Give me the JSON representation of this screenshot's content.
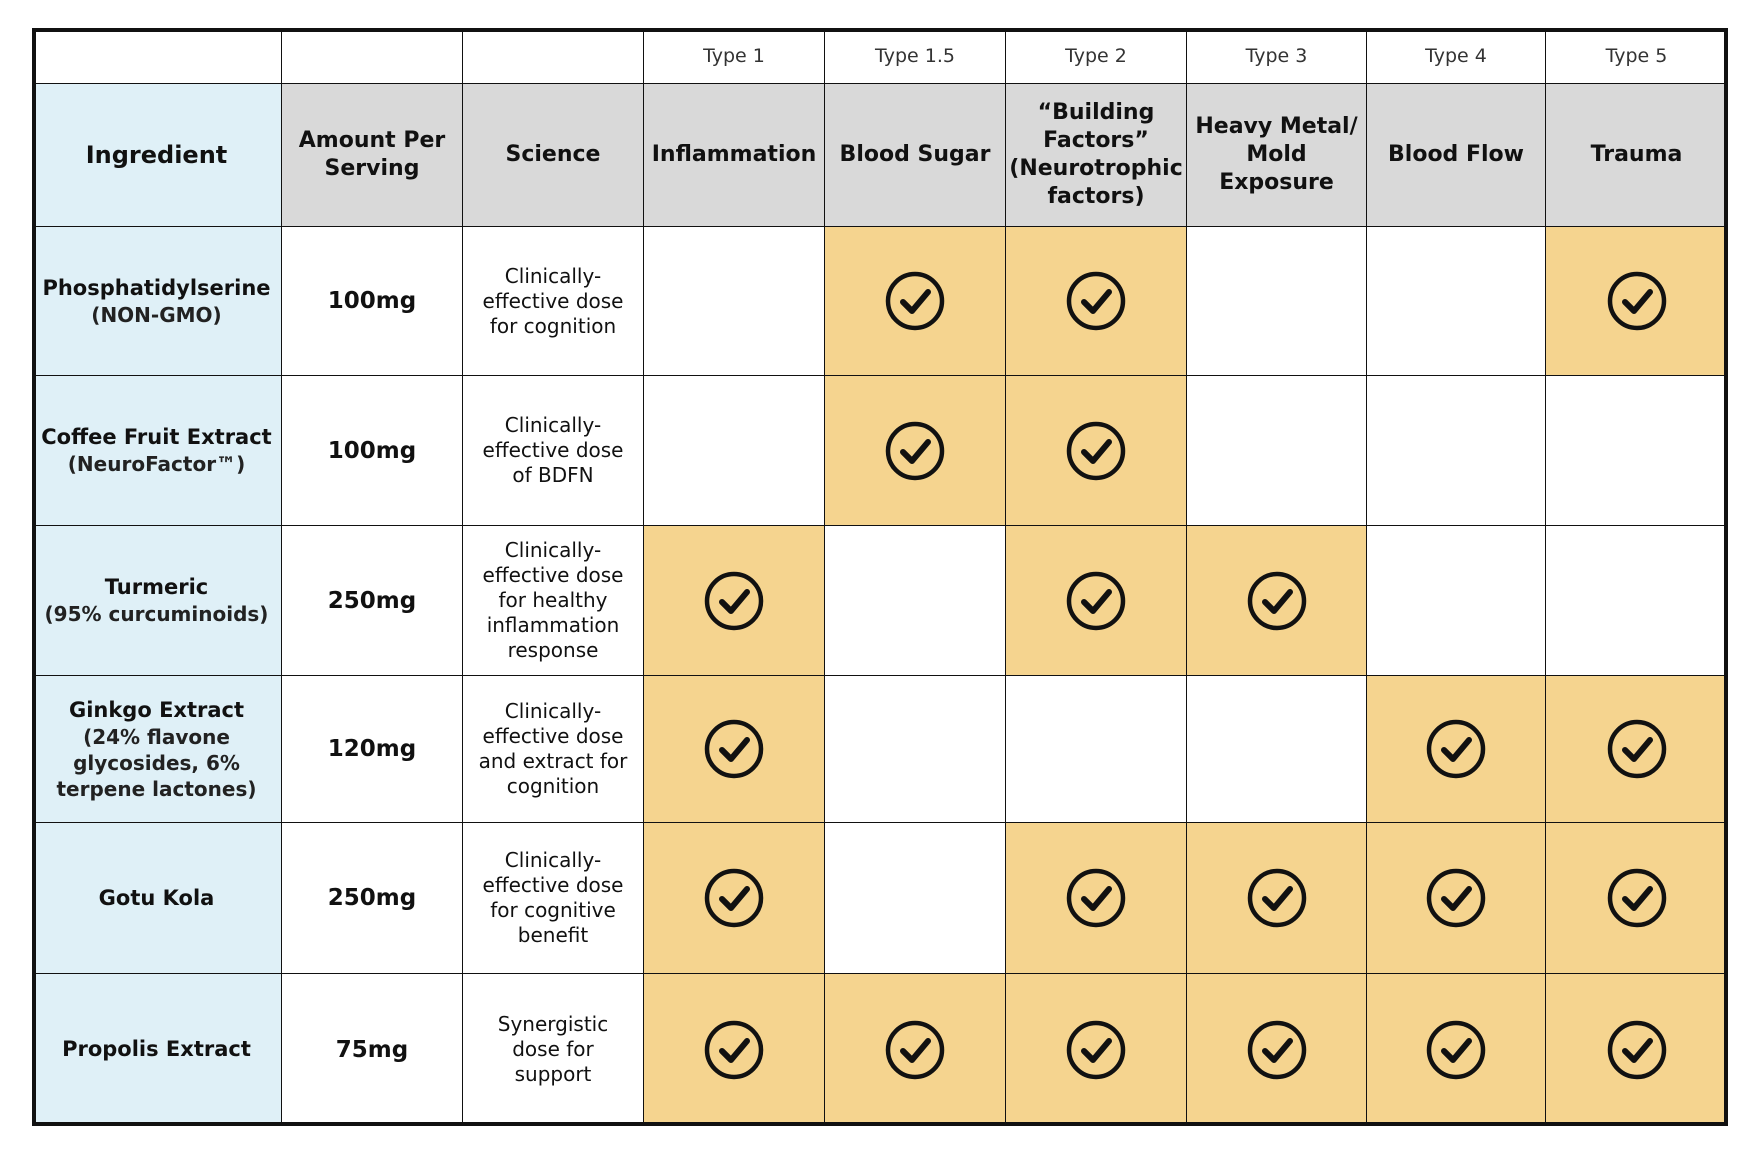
{
  "table": {
    "type_labels": [
      "Type 1",
      "Type 1.5",
      "Type 2",
      "Type 3",
      "Type 4",
      "Type 5"
    ],
    "header": [
      "Ingredient",
      "Amount Per Serving",
      "Science",
      "Inflammation",
      "Blood Sugar",
      "“Building Factors” (Neurotrophic factors)",
      "Heavy Metal/ Mold Exposure",
      "Blood Flow",
      "Trauma"
    ],
    "rows": [
      {
        "name": "Phosphatidylserine",
        "detail": "(NON-GMO)",
        "amount": "100mg",
        "science": "Clinically-effective dose for cognition",
        "checks": [
          false,
          true,
          true,
          false,
          false,
          true
        ]
      },
      {
        "name": "Coffee Fruit Extract",
        "detail": "(NeuroFactor™)",
        "amount": "100mg",
        "science": "Clinically-effective dose of BDFN",
        "checks": [
          false,
          true,
          true,
          false,
          false,
          false
        ]
      },
      {
        "name": "Turmeric",
        "detail": "(95% curcuminoids)",
        "amount": "250mg",
        "science": "Clinically-effective dose for healthy inflammation response",
        "checks": [
          true,
          false,
          true,
          true,
          false,
          false
        ]
      },
      {
        "name": "Ginkgo Extract",
        "detail": "(24% flavone glycosides, 6% terpene lactones)",
        "amount": "120mg",
        "science": "Clinically-effective dose and extract for cognition",
        "checks": [
          true,
          false,
          false,
          false,
          true,
          true
        ]
      },
      {
        "name": "Gotu Kola",
        "amount": "250mg",
        "science": "Clinically-effective dose for cognitive benefit",
        "checks": [
          true,
          false,
          true,
          true,
          true,
          true
        ]
      },
      {
        "name": "Propolis Extract",
        "amount": "75mg",
        "science": "Synergistic dose for support",
        "checks": [
          true,
          true,
          true,
          true,
          true,
          true
        ]
      }
    ]
  }
}
